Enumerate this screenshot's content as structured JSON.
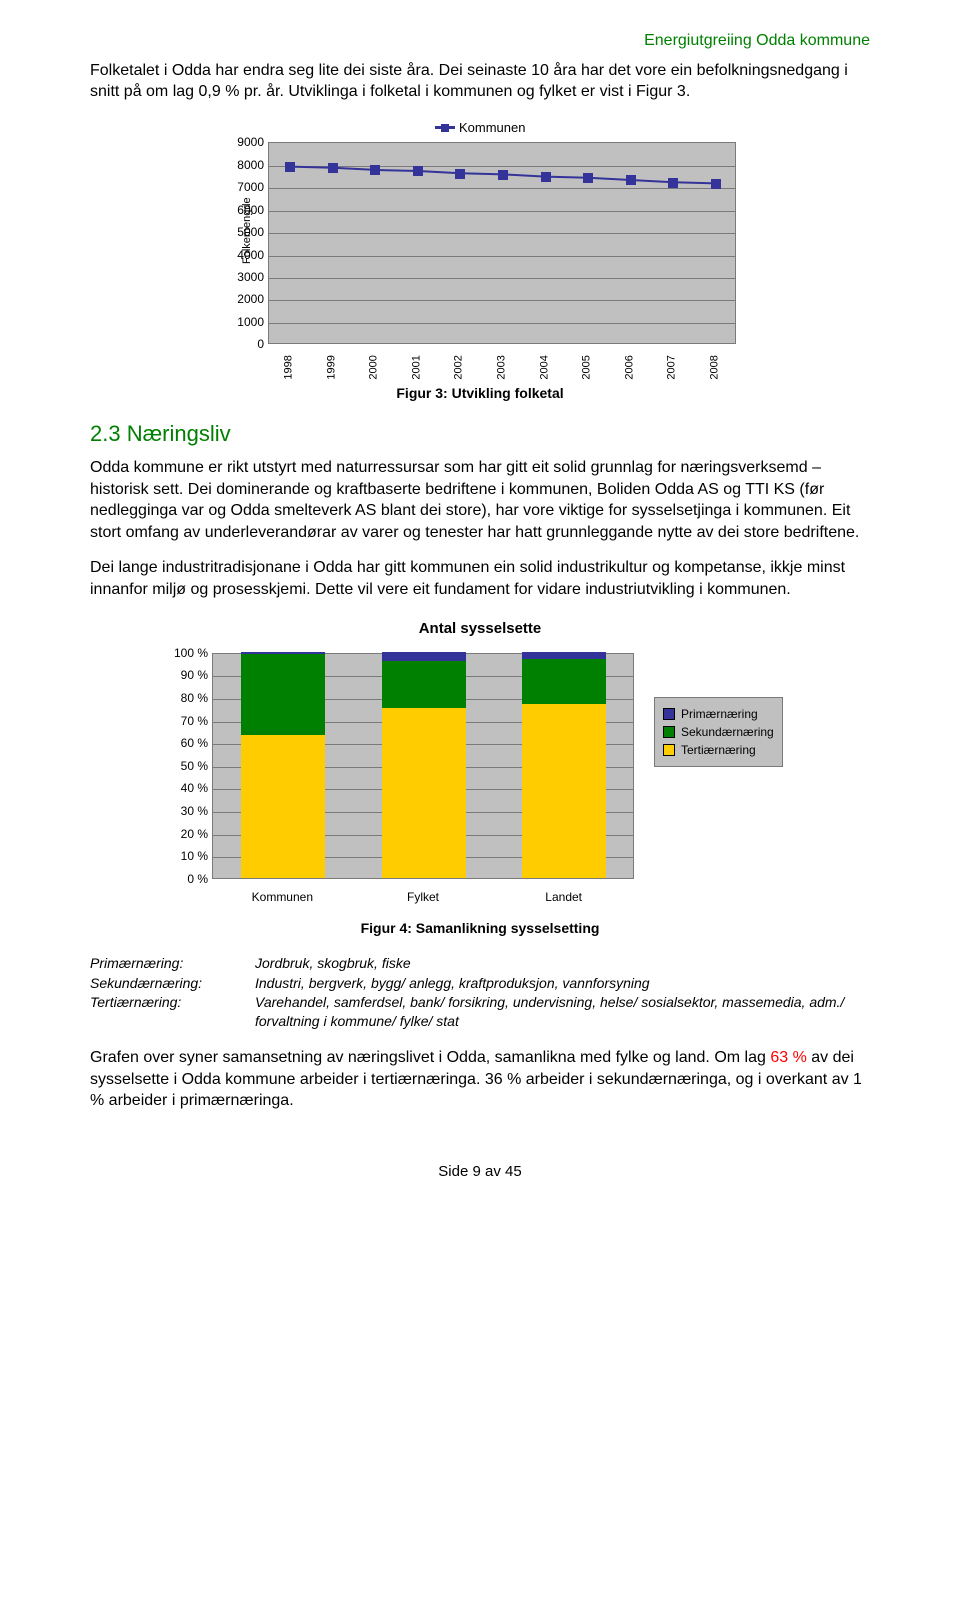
{
  "header": {
    "title": "Energiutgreiing Odda kommune"
  },
  "intro": {
    "p1": "Folketalet i Odda har endra seg lite dei siste åra. Dei seinaste 10 åra har det vore ein befolkningsnedgang i snitt på om lag 0,9 % pr. år. Utviklinga i folketal i kommunen og fylket er vist i Figur 3."
  },
  "chart1": {
    "series_label": "Kommunen",
    "yaxis_side_label": "Folkemengde",
    "ymax": 9000,
    "ytick_step": 1000,
    "yticks": [
      0,
      1000,
      2000,
      3000,
      4000,
      5000,
      6000,
      7000,
      8000,
      9000
    ],
    "years": [
      "1998",
      "1999",
      "2000",
      "2001",
      "2002",
      "2003",
      "2004",
      "2005",
      "2006",
      "2007",
      "2008"
    ],
    "values": [
      7950,
      7900,
      7800,
      7750,
      7650,
      7600,
      7500,
      7450,
      7350,
      7250,
      7200
    ],
    "line_color": "#333399",
    "marker_color": "#333399",
    "bg": "#c0c0c0",
    "grid_color": "#7a7a7a",
    "caption": "Figur 3: Utvikling folketal"
  },
  "section": {
    "num_title": "2.3 Næringsliv",
    "p2": "Odda kommune er rikt utstyrt med naturressursar som har gitt eit solid grunnlag for næringsverksemd – historisk sett. Dei dominerande og kraftbaserte bedriftene i kommunen, Boliden Odda AS og TTI KS (før nedlegginga var og Odda smelteverk AS blant dei store), har vore viktige for sysselsetjinga i kommunen. Eit stort omfang av underleverandørar av varer og tenester har hatt grunnleggande nytte av dei store bedriftene.",
    "p3": "Dei lange industritradisjonane i Odda har gitt kommunen ein solid industrikultur og kompetanse, ikkje minst innanfor miljø og prosesskjemi. Dette vil vere eit fundament for vidare industriutvikling i kommunen."
  },
  "chart2": {
    "title": "Antal sysselsette",
    "categories": [
      "Kommunen",
      "Fylket",
      "Landet"
    ],
    "yticks": [
      "0 %",
      "10 %",
      "20 %",
      "30 %",
      "40 %",
      "50 %",
      "60 %",
      "70 %",
      "80 %",
      "90 %",
      "100 %"
    ],
    "series": [
      {
        "name": "Primærnæring",
        "color": "#333399",
        "values": [
          1,
          4,
          3
        ]
      },
      {
        "name": "Sekundærnæring",
        "color": "#008000",
        "values": [
          36,
          21,
          20
        ]
      },
      {
        "name": "Tertiærnæring",
        "color": "#ffcc00",
        "values": [
          63,
          75,
          77
        ]
      }
    ],
    "bg": "#c0c0c0",
    "grid_color": "#7a7a7a",
    "caption": "Figur 4: Samanlikning sysselsetting"
  },
  "defs": {
    "rows": [
      {
        "k": "Primærnæring:",
        "v": "Jordbruk, skogbruk, fiske"
      },
      {
        "k": "Sekundærnæring:",
        "v": "Industri, bergverk, bygg/ anlegg, kraftproduksjon, vannforsyning"
      },
      {
        "k": "Tertiærnæring:",
        "v": "Varehandel, samferdsel, bank/ forsikring, undervisning, helse/ sosialsektor, massemedia, adm./ forvaltning i kommune/ fylke/ stat"
      }
    ]
  },
  "closing": {
    "p4a": "Grafen over syner samansetning av næringslivet i Odda, samanlikna med fylke og land. Om lag ",
    "p4_red": "63 %",
    "p4b": " av dei sysselsette i Odda kommune arbeider i tertiærnæringa. 36 % arbeider i sekundærnæringa, og i overkant av 1 % arbeider i primærnæringa."
  },
  "footer": {
    "text": "Side 9 av 45"
  }
}
